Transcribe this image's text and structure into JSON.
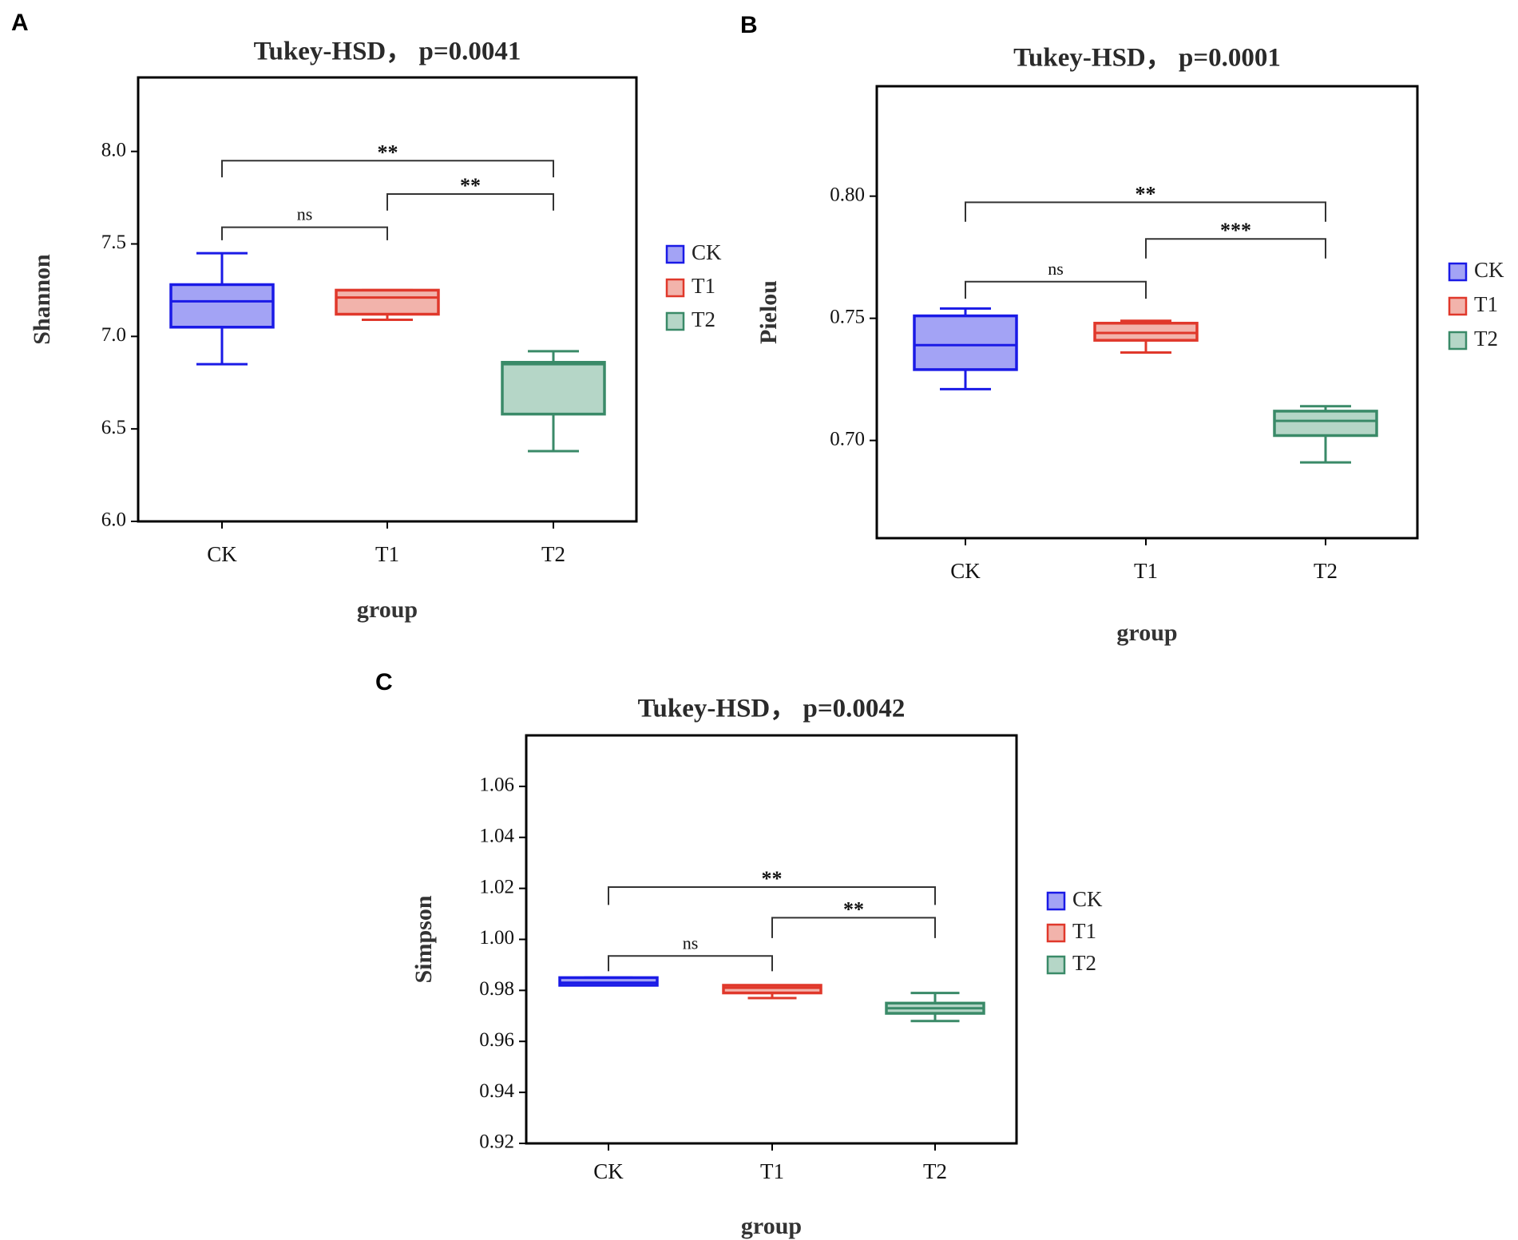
{
  "colors": {
    "CK": {
      "stroke": "#1a1ae6",
      "fill": "#a3a3f5"
    },
    "T1": {
      "stroke": "#e0382b",
      "fill": "#f2b3ab"
    },
    "T2": {
      "stroke": "#3a8a68",
      "fill": "#b5d6c7"
    }
  },
  "chart_data": [
    {
      "panel": "A",
      "type": "box",
      "title": "Tukey-HSD， p=0.0041",
      "xlabel": "group",
      "ylabel": "Shannon",
      "categories": [
        "CK",
        "T1",
        "T2"
      ],
      "ylim": [
        6.0,
        8.4
      ],
      "yticks": [
        6.0,
        6.5,
        7.0,
        7.5,
        8.0
      ],
      "ytick_labels": [
        "6.0",
        "6.5",
        "7.0",
        "7.5",
        "8.0"
      ],
      "boxes": [
        {
          "group": "CK",
          "min": 6.85,
          "q1": 7.05,
          "median": 7.19,
          "q3": 7.28,
          "max": 7.45
        },
        {
          "group": "T1",
          "min": 7.09,
          "q1": 7.12,
          "median": 7.21,
          "q3": 7.25,
          "max": 7.25
        },
        {
          "group": "T2",
          "min": 6.38,
          "q1": 6.58,
          "median": 6.85,
          "q3": 6.86,
          "max": 6.92
        }
      ],
      "comparisons": [
        {
          "from": "CK",
          "to": "T1",
          "label": "ns",
          "y": 7.59,
          "tick_end": 7.52
        },
        {
          "from": "T1",
          "to": "T2",
          "label": "**",
          "y": 7.77,
          "tick_end": 7.68
        },
        {
          "from": "CK",
          "to": "T2",
          "label": "**",
          "y": 7.95,
          "tick_end": 7.86
        }
      ],
      "legend": [
        "CK",
        "T1",
        "T2"
      ]
    },
    {
      "panel": "B",
      "type": "box",
      "title": "Tukey-HSD， p=0.0001",
      "xlabel": "group",
      "ylabel": "Pielou",
      "categories": [
        "CK",
        "T1",
        "T2"
      ],
      "ylim": [
        0.66,
        0.845
      ],
      "yticks": [
        0.7,
        0.75,
        0.8
      ],
      "ytick_labels": [
        "0.70",
        "0.75",
        "0.80"
      ],
      "boxes": [
        {
          "group": "CK",
          "min": 0.721,
          "q1": 0.729,
          "median": 0.739,
          "q3": 0.751,
          "max": 0.754
        },
        {
          "group": "T1",
          "min": 0.736,
          "q1": 0.741,
          "median": 0.744,
          "q3": 0.748,
          "max": 0.749
        },
        {
          "group": "T2",
          "min": 0.691,
          "q1": 0.702,
          "median": 0.708,
          "q3": 0.712,
          "max": 0.714
        }
      ],
      "comparisons": [
        {
          "from": "CK",
          "to": "T1",
          "label": "ns",
          "y": 0.765,
          "tick_end": 0.758
        },
        {
          "from": "T1",
          "to": "T2",
          "label": "***",
          "y": 0.7825,
          "tick_end": 0.7745
        },
        {
          "from": "CK",
          "to": "T2",
          "label": "**",
          "y": 0.7975,
          "tick_end": 0.7895
        }
      ],
      "legend": [
        "CK",
        "T1",
        "T2"
      ]
    },
    {
      "panel": "C",
      "type": "box",
      "title": "Tukey-HSD， p=0.0042",
      "xlabel": "group",
      "ylabel": "Simpson",
      "categories": [
        "CK",
        "T1",
        "T2"
      ],
      "ylim": [
        0.92,
        1.08
      ],
      "yticks": [
        0.92,
        0.94,
        0.96,
        0.98,
        1.0,
        1.02,
        1.04,
        1.06
      ],
      "ytick_labels": [
        "0.92",
        "0.94",
        "0.96",
        "0.98",
        "1.00",
        "1.02",
        "1.04",
        "1.06"
      ],
      "boxes": [
        {
          "group": "CK",
          "min": 0.982,
          "q1": 0.982,
          "median": 0.983,
          "q3": 0.985,
          "max": 0.985
        },
        {
          "group": "T1",
          "min": 0.977,
          "q1": 0.979,
          "median": 0.981,
          "q3": 0.982,
          "max": 0.982
        },
        {
          "group": "T2",
          "min": 0.968,
          "q1": 0.971,
          "median": 0.973,
          "q3": 0.975,
          "max": 0.979
        }
      ],
      "comparisons": [
        {
          "from": "CK",
          "to": "T1",
          "label": "ns",
          "y": 0.9935,
          "tick_end": 0.9875
        },
        {
          "from": "T1",
          "to": "T2",
          "label": "**",
          "y": 1.0085,
          "tick_end": 1.0005
        },
        {
          "from": "CK",
          "to": "T2",
          "label": "**",
          "y": 1.0205,
          "tick_end": 1.0135
        }
      ],
      "legend": [
        "CK",
        "T1",
        "T2"
      ]
    }
  ]
}
